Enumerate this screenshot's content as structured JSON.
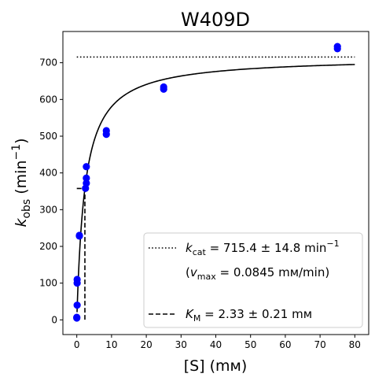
{
  "chart_data": {
    "type": "scatter",
    "title": "W409D",
    "xlabel": {
      "text": "[S] (mм)"
    },
    "ylabel": {
      "main": "k",
      "sub": "obs",
      "text": " (min",
      "sup": "−1",
      "tail": ")"
    },
    "xlim": [
      -4,
      84
    ],
    "ylim": [
      -40,
      785
    ],
    "x_ticks": [
      0,
      10,
      20,
      30,
      40,
      50,
      60,
      70,
      80
    ],
    "y_ticks": [
      0,
      100,
      200,
      300,
      400,
      500,
      600,
      700
    ],
    "grid": false,
    "legend_position": "lower-right",
    "colors": {
      "points": "#0000ff",
      "fit": "#000000",
      "reference_lines": "#000000"
    },
    "series": [
      {
        "style": "points",
        "x": [
          0.0,
          0.0,
          0.1,
          0.1,
          0.1,
          0.75,
          0.75,
          2.5,
          2.75,
          2.75,
          2.75,
          8.5,
          8.5,
          25,
          25,
          75,
          75
        ],
        "y": [
          5,
          7,
          40,
          100,
          110,
          228,
          230,
          358,
          372,
          386,
          417,
          505,
          515,
          628,
          634,
          738,
          744
        ]
      },
      {
        "style": "fit_curve",
        "equation": "Michaelis-Menten",
        "kcat": 715.4,
        "KM": 2.33,
        "x_range": [
          0.07,
          80
        ]
      },
      {
        "style": "dotted_line",
        "label": "kcat",
        "x": [
          0,
          80
        ],
        "y": [
          715.4,
          715.4
        ]
      },
      {
        "style": "dashed_line",
        "label": "KM",
        "x": [
          0,
          2.33,
          2.33
        ],
        "y": [
          357.7,
          357.7,
          0
        ]
      }
    ],
    "legend": [
      {
        "style": "dotted",
        "sym": "k",
        "sub": "cat",
        "value": " = 715.4 ± 14.8 min",
        "sup": "−1"
      },
      {
        "style": "none",
        "pre": "(",
        "sym": "v",
        "sub": "max",
        "value": " = 0.0845 mм/min)"
      },
      {
        "style": "dashed",
        "sym": "K",
        "sub": "M",
        "value": " = 2.33 ± 0.21 mм"
      }
    ]
  }
}
